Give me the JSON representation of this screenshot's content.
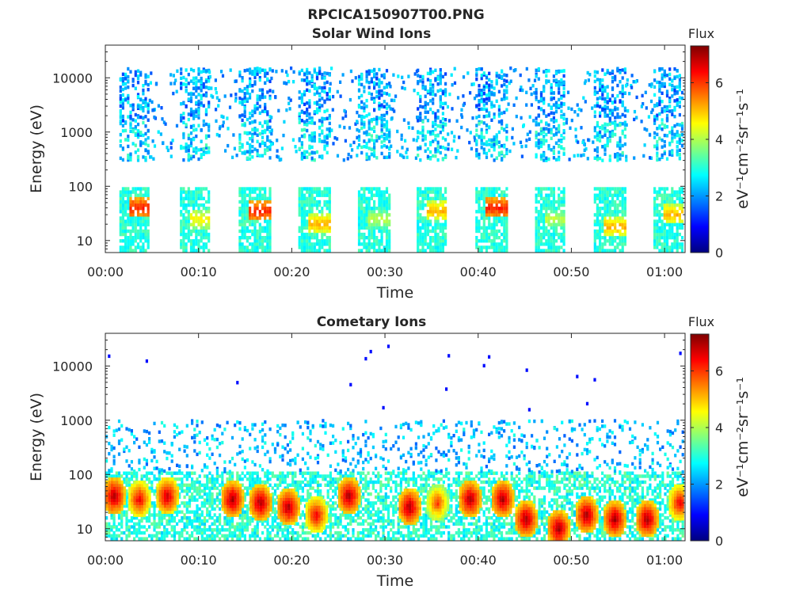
{
  "figure": {
    "title": "RPCICA150907T00.PNG"
  },
  "chart_data": [
    {
      "type": "heatmap",
      "title": "Solar Wind Ions",
      "xlabel": "Time",
      "ylabel": "Energy (eV)",
      "yscale": "log",
      "xlim": [
        "00:00",
        "01:02"
      ],
      "ylim": [
        6,
        40000
      ],
      "x_ticks": [
        "00:00",
        "00:10",
        "00:20",
        "00:30",
        "00:40",
        "00:50",
        "01:00"
      ],
      "y_ticks": [
        "10",
        "100",
        "1000",
        "10000"
      ],
      "colorbar": {
        "title": "Flux",
        "label": "eV⁻¹cm⁻²sr⁻¹s⁻¹",
        "range": [
          0,
          7.3
        ],
        "ticks": [
          "0",
          "2",
          "4",
          "6"
        ],
        "colormap": "jet"
      },
      "grid": false,
      "pattern": "periodic bursts (~6.3 min period), each burst active ~3.5 min, with a flux peak of ~6 near 20-40 eV and sparse high-energy counts up to ~15000 eV",
      "bursts": [
        {
          "start_min": 1.5,
          "end_min": 4.6,
          "peak_energy_ev": 40,
          "peak_flux": 6.0
        },
        {
          "start_min": 8.0,
          "end_min": 11.0,
          "peak_energy_ev": 25,
          "peak_flux": 4.5
        },
        {
          "start_min": 14.3,
          "end_min": 17.6,
          "peak_energy_ev": 35,
          "peak_flux": 6.0
        },
        {
          "start_min": 20.7,
          "end_min": 24.0,
          "peak_energy_ev": 20,
          "peak_flux": 5.0
        },
        {
          "start_min": 27.1,
          "end_min": 30.4,
          "peak_energy_ev": 25,
          "peak_flux": 4.0
        },
        {
          "start_min": 33.4,
          "end_min": 36.6,
          "peak_energy_ev": 35,
          "peak_flux": 5.0
        },
        {
          "start_min": 39.7,
          "end_min": 43.0,
          "peak_energy_ev": 40,
          "peak_flux": 6.0
        },
        {
          "start_min": 46.1,
          "end_min": 49.3,
          "peak_energy_ev": 25,
          "peak_flux": 4.0
        },
        {
          "start_min": 52.4,
          "end_min": 55.7,
          "peak_energy_ev": 18,
          "peak_flux": 5.0
        },
        {
          "start_min": 58.8,
          "end_min": 62.0,
          "peak_energy_ev": 30,
          "peak_flux": 5.0
        }
      ]
    },
    {
      "type": "heatmap",
      "title": "Cometary Ions",
      "xlabel": "Time",
      "ylabel": "Energy (eV)",
      "yscale": "log",
      "xlim": [
        "00:00",
        "01:02"
      ],
      "ylim": [
        6,
        40000
      ],
      "x_ticks": [
        "00:00",
        "00:10",
        "00:20",
        "00:30",
        "00:40",
        "00:50",
        "01:00"
      ],
      "y_ticks": [
        "10",
        "100",
        "1000",
        "10000"
      ],
      "colorbar": {
        "title": "Flux",
        "label": "eV⁻¹cm⁻²sr⁻¹s⁻¹",
        "range": [
          0,
          7.3
        ],
        "ticks": [
          "0",
          "2",
          "4",
          "6"
        ],
        "colormap": "jet"
      },
      "grid": false,
      "pattern": "continuous low-energy cometary ion signal 6-100 eV with repeated high-flux (~7) blobs near 15-50 eV, scattered counts up to ~1000 eV and isolated points up to ~30000 eV",
      "blobs": [
        {
          "time_min": 0.8,
          "energy_ev": 40,
          "flux": 7.0
        },
        {
          "time_min": 3.5,
          "energy_ev": 35,
          "flux": 6.5
        },
        {
          "time_min": 6.5,
          "energy_ev": 40,
          "flux": 6.8
        },
        {
          "time_min": 13.5,
          "energy_ev": 35,
          "flux": 7.0
        },
        {
          "time_min": 16.5,
          "energy_ev": 30,
          "flux": 7.0
        },
        {
          "time_min": 19.5,
          "energy_ev": 25,
          "flux": 7.0
        },
        {
          "time_min": 22.5,
          "energy_ev": 18,
          "flux": 6.5
        },
        {
          "time_min": 26.0,
          "energy_ev": 40,
          "flux": 7.0
        },
        {
          "time_min": 32.5,
          "energy_ev": 25,
          "flux": 7.0
        },
        {
          "time_min": 35.5,
          "energy_ev": 30,
          "flux": 6.0
        },
        {
          "time_min": 39.0,
          "energy_ev": 35,
          "flux": 7.0
        },
        {
          "time_min": 42.5,
          "energy_ev": 35,
          "flux": 7.0
        },
        {
          "time_min": 45.0,
          "energy_ev": 15,
          "flux": 7.0
        },
        {
          "time_min": 48.5,
          "energy_ev": 10,
          "flux": 7.0
        },
        {
          "time_min": 51.5,
          "energy_ev": 18,
          "flux": 7.0
        },
        {
          "time_min": 54.5,
          "energy_ev": 15,
          "flux": 7.0
        },
        {
          "time_min": 58.0,
          "energy_ev": 15,
          "flux": 7.0
        },
        {
          "time_min": 61.5,
          "energy_ev": 30,
          "flux": 6.5
        }
      ]
    }
  ]
}
